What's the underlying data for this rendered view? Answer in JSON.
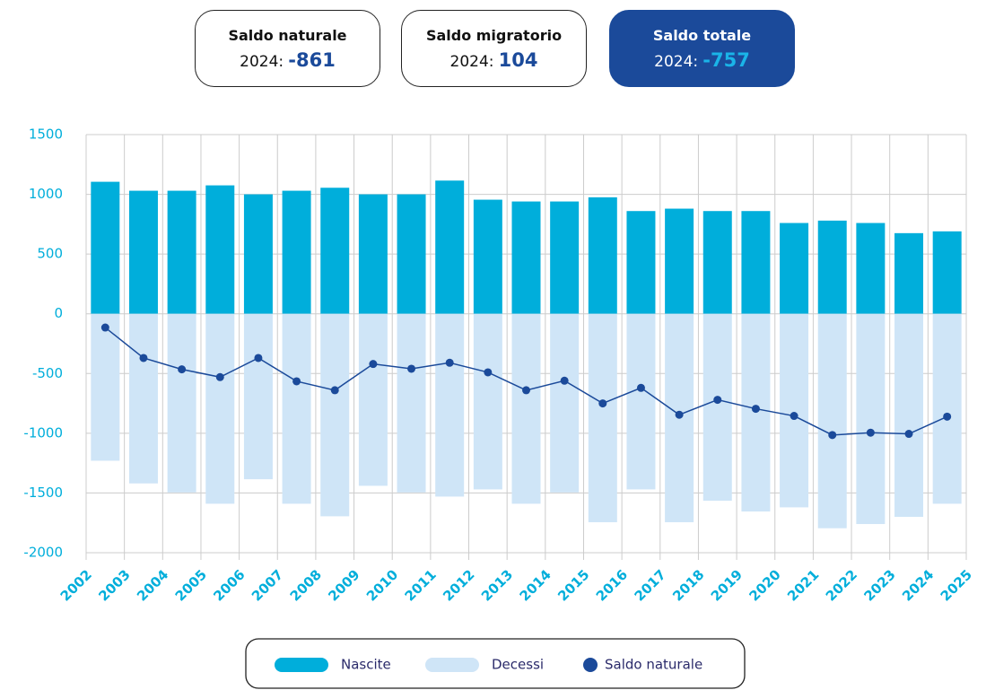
{
  "tabs": [
    {
      "title": "Saldo naturale",
      "year_label": "2024:",
      "value": -861
    },
    {
      "title": "Saldo migratorio",
      "year_label": "2024:",
      "value": 104
    },
    {
      "title": "Saldo totale",
      "year_label": "2024:",
      "value": -757
    }
  ],
  "chart_data": {
    "type": "bar",
    "x": [
      2002,
      2003,
      2004,
      2005,
      2006,
      2007,
      2008,
      2009,
      2010,
      2011,
      2012,
      2013,
      2014,
      2015,
      2016,
      2017,
      2018,
      2019,
      2020,
      2021,
      2022,
      2023,
      2024
    ],
    "series": [
      {
        "name": "Nascite",
        "color": "#00aedb",
        "values": [
          1105,
          1030,
          1030,
          1075,
          1000,
          1030,
          1055,
          1000,
          1000,
          1115,
          955,
          940,
          940,
          975,
          860,
          880,
          860,
          860,
          760,
          780,
          760,
          675,
          690
        ]
      },
      {
        "name": "Decessi",
        "color": "#cfe5f7",
        "values": [
          -1230,
          -1420,
          -1495,
          -1590,
          -1385,
          -1590,
          -1695,
          -1440,
          -1495,
          -1530,
          -1470,
          -1590,
          -1495,
          -1745,
          -1470,
          -1745,
          -1565,
          -1655,
          -1620,
          -1795,
          -1760,
          -1700,
          -1590
        ]
      },
      {
        "name": "Saldo naturale",
        "type": "line",
        "color": "#1b4a9a",
        "values": [
          -115,
          -370,
          -465,
          -530,
          -370,
          -565,
          -640,
          -420,
          -460,
          -410,
          -490,
          -640,
          -560,
          -750,
          -620,
          -845,
          -720,
          -795,
          -855,
          -1015,
          -995,
          -1005,
          -861
        ]
      }
    ],
    "xlim": [
      2002,
      2025
    ],
    "xticks": [
      2002,
      2003,
      2004,
      2005,
      2006,
      2007,
      2008,
      2009,
      2010,
      2011,
      2012,
      2013,
      2014,
      2015,
      2016,
      2017,
      2018,
      2019,
      2020,
      2021,
      2022,
      2023,
      2024,
      2025
    ],
    "ylim": [
      -2000,
      1500
    ],
    "yticks": [
      -2000,
      -1500,
      -1000,
      -500,
      0,
      500,
      1000,
      1500
    ],
    "grid": true,
    "legend": "bottom"
  }
}
